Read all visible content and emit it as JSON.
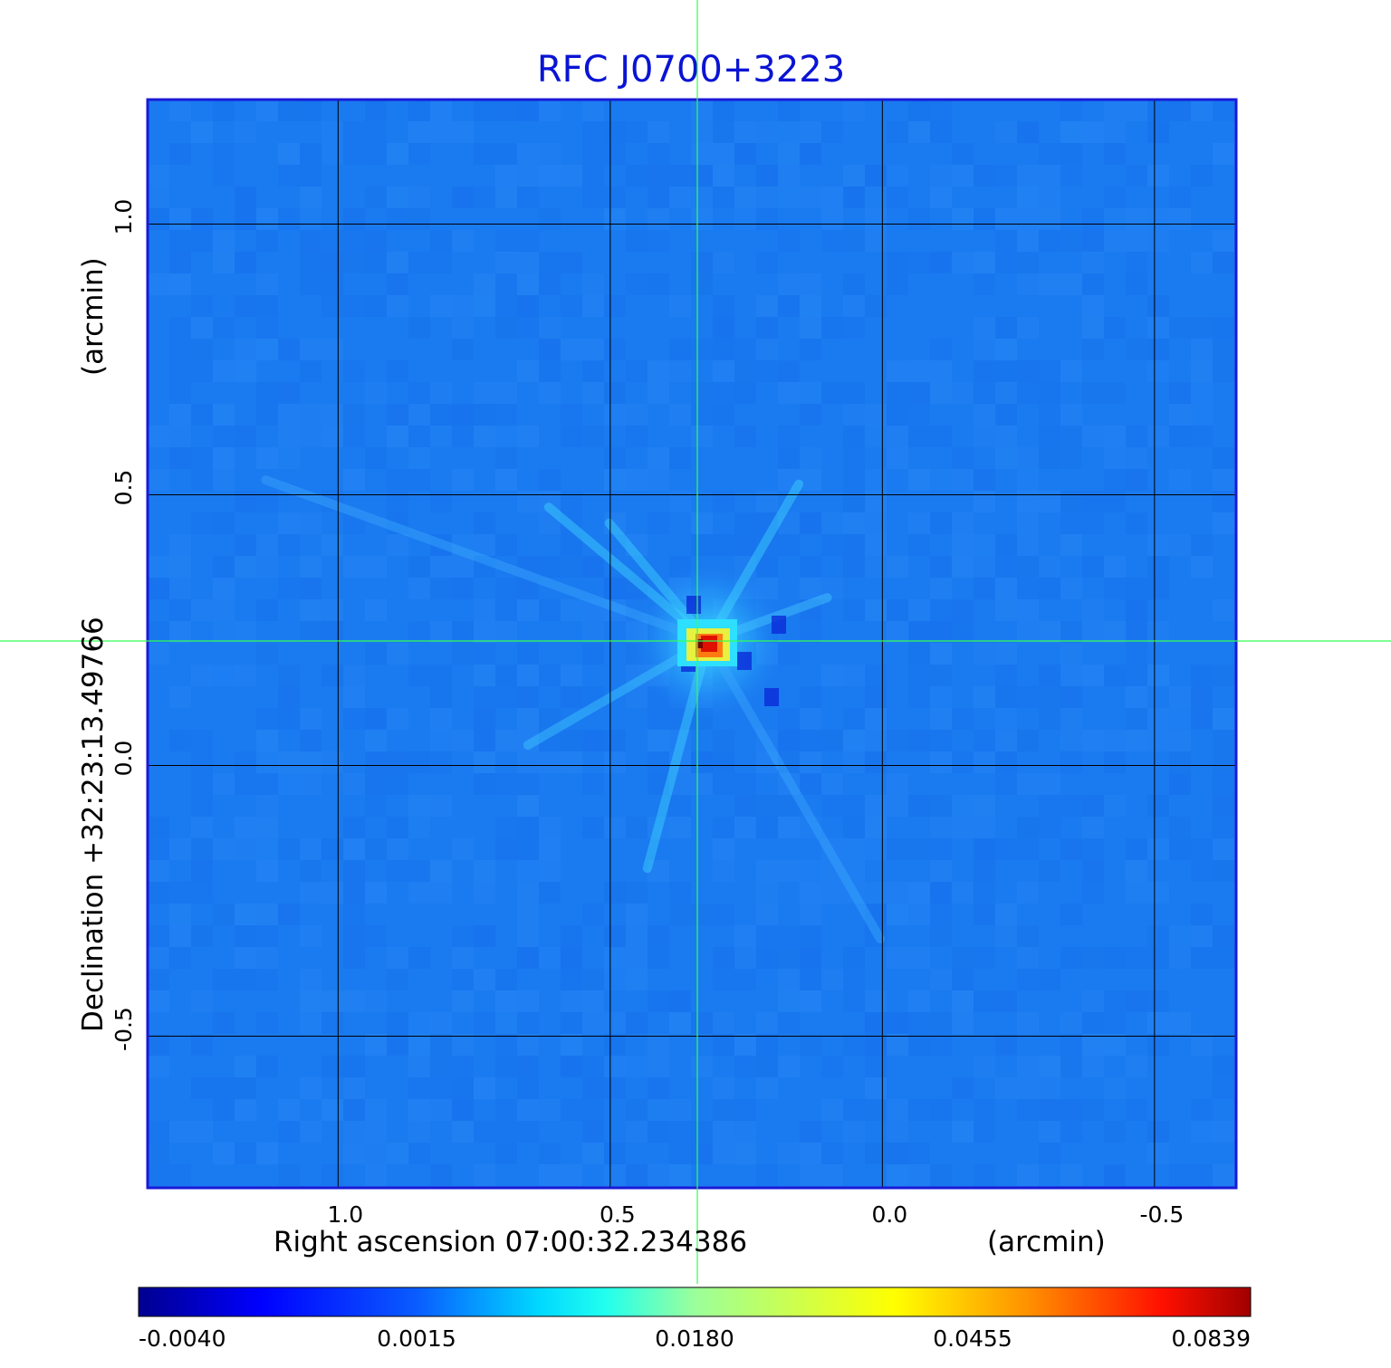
{
  "chart_data": {
    "type": "heatmap",
    "title": "RFC J0700+3223",
    "xlabel": "Right ascension  07:00:32.234386",
    "xunit": "(arcmin)",
    "ylabel": "Declination  +32:23:13.49766",
    "yunit": "(arcmin)",
    "x_range": [
      1.35,
      -0.65
    ],
    "y_range": [
      -0.78,
      1.23
    ],
    "x_ticks": [
      1.0,
      0.5,
      0.0,
      -0.5
    ],
    "x_tick_labels": [
      "1.0",
      "0.5",
      "0.0",
      "-0.5"
    ],
    "y_ticks": [
      1.0,
      0.5,
      0.0,
      -0.5
    ],
    "y_tick_labels": [
      "1.0",
      "0.5",
      "0.0",
      "-0.5"
    ],
    "grid": true,
    "crosshair": {
      "x": 0.34,
      "y": 0.23
    },
    "source_peak": {
      "x": 0.32,
      "y": 0.23,
      "value": 0.0839
    },
    "background_level": 0.0005,
    "colorbar": {
      "min": -0.004,
      "max": 0.0839,
      "tick_labels": [
        "-0.0040",
        "0.0015",
        "0.0180",
        "0.0455",
        "0.0839"
      ]
    },
    "colors": {
      "title": "#0a14d4",
      "frame": "#1a1ad8",
      "grid": "#000000",
      "crosshair": "#33ff55",
      "background_map": "#1a7af0"
    }
  }
}
